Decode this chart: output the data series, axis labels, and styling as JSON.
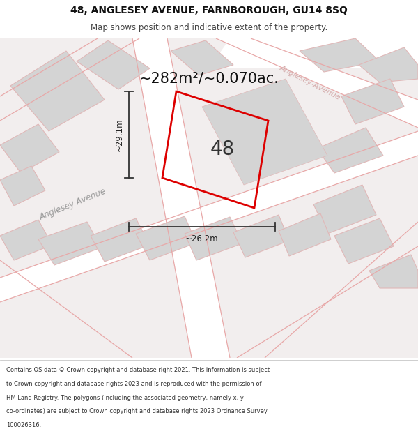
{
  "title_line1": "48, ANGLESEY AVENUE, FARNBOROUGH, GU14 8SQ",
  "title_line2": "Map shows position and indicative extent of the property.",
  "area_text": "~282m²/~0.070ac.",
  "property_number": "48",
  "dim_width": "~26.2m",
  "dim_height": "~29.1m",
  "street_label_lower": "Anglesey Avenue",
  "street_label_upper": "Anglesey-Avenue",
  "footer_text_1": "Contains OS data © Crown copyright and database right 2021. This information is subject",
  "footer_text_2": "to Crown copyright and database rights 2023 and is reproduced with the permission of",
  "footer_text_3": "HM Land Registry. The polygons (including the associated geometry, namely x, y",
  "footer_text_4": "co-ordinates) are subject to Crown copyright and database rights 2023 Ordnance Survey",
  "footer_text_5": "100026316.",
  "map_bg": "#f2eeee",
  "plot_line_color": "#dd0000",
  "road_line_color": "#e8a8a8",
  "block_fill_color": "#d4d4d4",
  "block_edge_color": "#e0b8b8",
  "white": "#ffffff",
  "footer_bg": "#ffffff",
  "title_bg": "#ffffff"
}
